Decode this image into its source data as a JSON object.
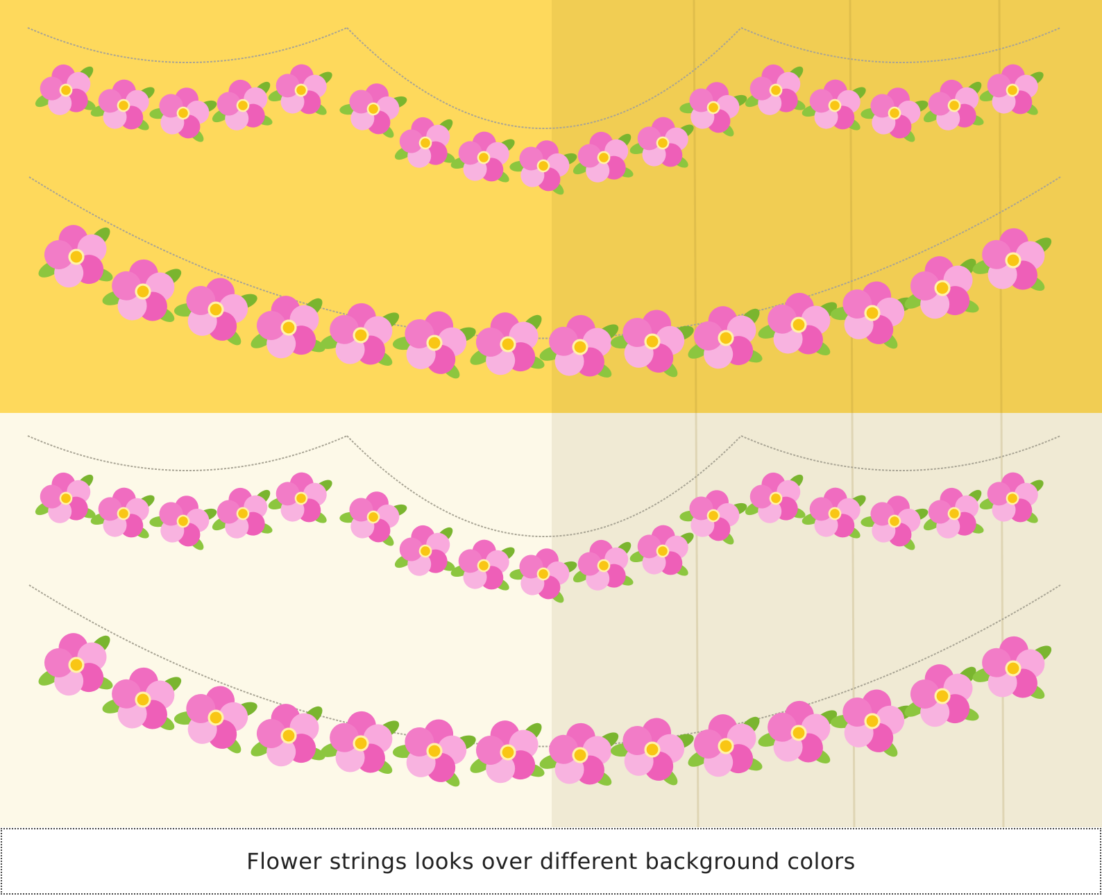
{
  "caption": "Flower strings looks over different background colors"
}
